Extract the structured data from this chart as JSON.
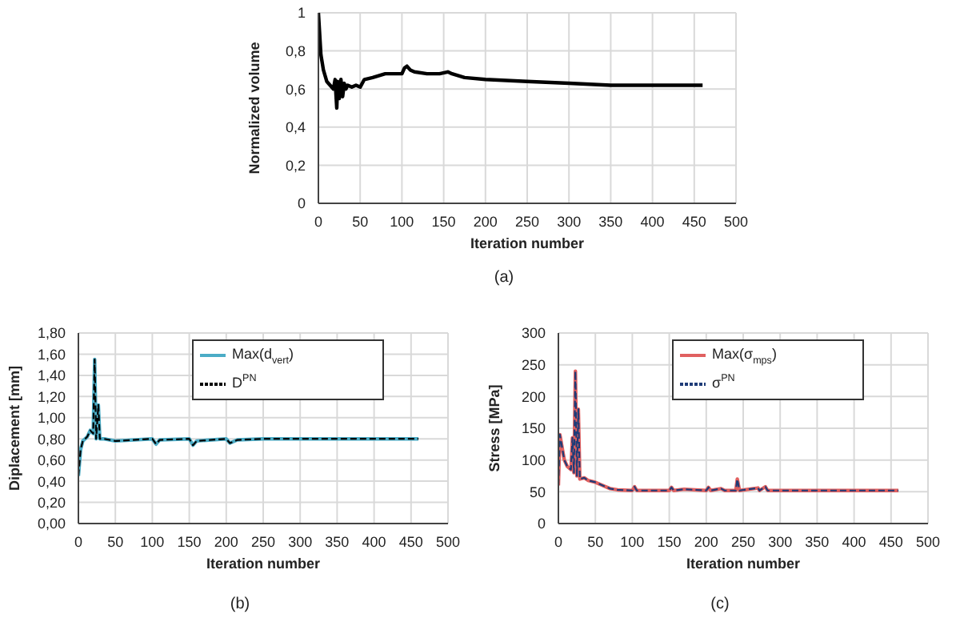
{
  "chart_data": [
    {
      "type": "line",
      "xlabel": "Iteration number",
      "ylabel": "Normalized volume",
      "annotations": [
        "(a)"
      ],
      "grid": true,
      "marker": "none",
      "xlim": [
        0,
        500
      ],
      "xticks": [
        0,
        50,
        100,
        150,
        200,
        250,
        300,
        350,
        400,
        450,
        500
      ],
      "ylim": [
        0,
        1
      ],
      "yticks": [
        0,
        {
          "value": 0.2,
          "label": "0,2"
        },
        {
          "value": 0.4,
          "label": "0,4"
        },
        {
          "value": 0.6,
          "label": "0,6"
        },
        {
          "value": 0.8,
          "label": "0,8"
        },
        1
      ],
      "x": [
        0,
        3,
        6,
        10,
        14,
        18,
        20,
        22,
        23,
        25,
        27,
        29,
        31,
        33,
        35,
        40,
        45,
        50,
        55,
        65,
        80,
        100,
        103,
        106,
        110,
        115,
        130,
        145,
        155,
        160,
        175,
        200,
        250,
        300,
        350,
        400,
        460
      ],
      "series": [
        {
          "color": "#000000",
          "values": [
            1,
            0.78,
            0.7,
            0.64,
            0.62,
            0.6,
            0.65,
            0.5,
            0.64,
            0.55,
            0.65,
            0.56,
            0.63,
            0.6,
            0.62,
            0.61,
            0.62,
            0.61,
            0.65,
            0.66,
            0.68,
            0.68,
            0.71,
            0.72,
            0.7,
            0.69,
            0.68,
            0.68,
            0.69,
            0.68,
            0.66,
            0.65,
            0.64,
            0.63,
            0.62,
            0.62,
            0.62
          ]
        }
      ]
    },
    {
      "type": "line",
      "xlabel": "Iteration number",
      "ylabel": "Diplacement [mm]",
      "annotations": [
        "(b)"
      ],
      "grid": true,
      "marker": "none",
      "legend": "top right",
      "xlim": [
        0,
        500
      ],
      "xticks": [
        0,
        50,
        100,
        150,
        200,
        250,
        300,
        350,
        400,
        450,
        500
      ],
      "ylim": [
        0,
        1.8
      ],
      "yticks": [
        {
          "value": 0,
          "label": "0,00"
        },
        {
          "value": 0.2,
          "label": "0,20"
        },
        {
          "value": 0.4,
          "label": "0,40"
        },
        {
          "value": 0.6,
          "label": "0,60"
        },
        {
          "value": 0.8,
          "label": "0,80"
        },
        {
          "value": 1,
          "label": "1,00"
        },
        {
          "value": 1.2,
          "label": "1,20"
        },
        {
          "value": 1.4,
          "label": "1,40"
        },
        {
          "value": 1.6,
          "label": "1,60"
        },
        {
          "value": 1.8,
          "label": "1,80"
        }
      ],
      "x": [
        0,
        3,
        6,
        12,
        16,
        20,
        22,
        24,
        27,
        29,
        35,
        50,
        100,
        105,
        110,
        150,
        155,
        160,
        200,
        205,
        215,
        250,
        460
      ],
      "series": [
        {
          "name": "Max(d$_{vert}$)",
          "color": "#4bacc6",
          "line_style": "solid",
          "values": [
            0.45,
            0.7,
            0.78,
            0.82,
            0.88,
            0.85,
            1.55,
            0.8,
            1.12,
            0.8,
            0.8,
            0.78,
            0.8,
            0.75,
            0.79,
            0.8,
            0.74,
            0.78,
            0.8,
            0.76,
            0.79,
            0.8,
            0.8
          ]
        },
        {
          "name": "D$^{PN}$",
          "color": "#000000",
          "line_style": "dashed",
          "values": [
            0.45,
            0.7,
            0.78,
            0.82,
            0.88,
            0.85,
            1.55,
            0.8,
            1.12,
            0.8,
            0.8,
            0.78,
            0.8,
            0.75,
            0.79,
            0.8,
            0.74,
            0.78,
            0.8,
            0.76,
            0.79,
            0.8,
            0.8
          ]
        }
      ]
    },
    {
      "type": "line",
      "xlabel": "Iteration number",
      "ylabel": "Stress [MPa]",
      "annotations": [
        "(c)"
      ],
      "grid": true,
      "marker": "none",
      "legend": "top right",
      "xlim": [
        0,
        500
      ],
      "xticks": [
        0,
        50,
        100,
        150,
        200,
        250,
        300,
        350,
        400,
        450,
        500
      ],
      "ylim": [
        0,
        300
      ],
      "yticks": [
        0,
        50,
        100,
        150,
        200,
        250,
        300
      ],
      "x": [
        0,
        2,
        5,
        8,
        12,
        17,
        19,
        21,
        23,
        25,
        27,
        29,
        35,
        40,
        50,
        60,
        70,
        80,
        100,
        103,
        106,
        150,
        153,
        156,
        170,
        200,
        203,
        206,
        220,
        225,
        240,
        242,
        245,
        270,
        272,
        280,
        283,
        300,
        460
      ],
      "series": [
        {
          "name": "Max(σ$_{mps}$)",
          "color": "#e06060",
          "line_style": "solid",
          "values": [
            60,
            140,
            120,
            100,
            90,
            85,
            135,
            80,
            240,
            75,
            180,
            70,
            72,
            68,
            65,
            60,
            55,
            53,
            52,
            58,
            52,
            52,
            57,
            52,
            54,
            52,
            57,
            52,
            55,
            52,
            52,
            70,
            52,
            56,
            52,
            58,
            52,
            52,
            52
          ]
        },
        {
          "name": "σ$^{PN}$",
          "color": "#1f3c78",
          "line_style": "dashed",
          "values": [
            60,
            140,
            120,
            100,
            90,
            85,
            135,
            80,
            240,
            75,
            180,
            70,
            72,
            68,
            65,
            60,
            55,
            53,
            52,
            58,
            52,
            52,
            57,
            52,
            54,
            52,
            57,
            52,
            55,
            52,
            52,
            70,
            52,
            56,
            52,
            58,
            52,
            52,
            52
          ]
        }
      ]
    }
  ]
}
